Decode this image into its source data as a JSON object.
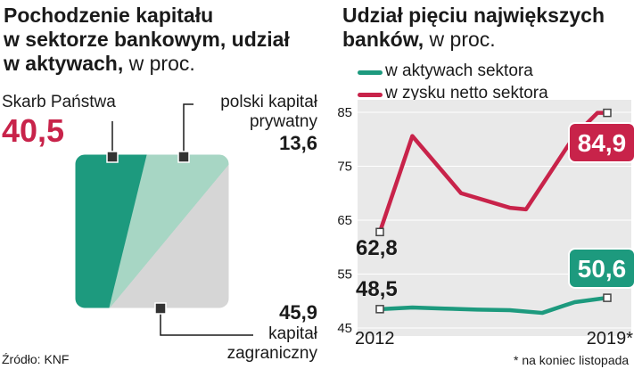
{
  "left_chart": {
    "title_bold": "Pochodzenie kapitału w sektorze bankowym, udział w aktywach,",
    "title_line1": "Pochodzenie kapitału",
    "title_line2": "w sektorze bankowym, udział",
    "title_line3": "w aktywach,",
    "title_unit": " w proc.",
    "segments": [
      {
        "label": "Skarb Państwa",
        "value_text": "40,5",
        "value": 40.5,
        "color": "#1d9a7e"
      },
      {
        "label_line1": "polski kapitał",
        "label_line2": "prywatny",
        "value_text": "13,6",
        "value": 13.6,
        "color": "#a7d6c4"
      },
      {
        "label_line1": "kapitał",
        "label_line2": "zagraniczny",
        "value_text": "45,9",
        "value": 45.9,
        "color": "#d6d6d6"
      }
    ]
  },
  "right_chart": {
    "title_line1": "Udział pięciu największych",
    "title_line2": "banków,",
    "title_unit": " w proc."
  },
  "chart_data": [
    {
      "type": "pie",
      "title": "Pochodzenie kapitału w sektorze bankowym, udział w aktywach, w proc.",
      "categories": [
        "Skarb Państwa",
        "polski kapitał prywatny",
        "kapitał zagraniczny"
      ],
      "values": [
        40.5,
        13.6,
        45.9
      ]
    },
    {
      "type": "line",
      "title": "Udział pięciu największych banków, w proc.",
      "x": [
        2012,
        2013,
        2014,
        2015,
        2016,
        2017,
        2018,
        2019
      ],
      "x_tick_labels": [
        "2012",
        "2019*"
      ],
      "ylim": [
        45,
        85
      ],
      "y_ticks": [
        45,
        55,
        65,
        75,
        85
      ],
      "y_tick_labels": [
        "45",
        "55",
        "65",
        "75",
        "85"
      ],
      "legend_position": "top",
      "series": [
        {
          "name": "w aktywach sektora",
          "color": "#1d9a7e",
          "values": [
            48.5,
            48.8,
            48.6,
            48.4,
            48.3,
            47.8,
            49.8,
            50.6
          ]
        },
        {
          "name": "w zysku netto sektora",
          "color": "#c8234a",
          "values": [
            62.8,
            80.6,
            70.0,
            67.3,
            67.0,
            80.7,
            84.9,
            84.9
          ],
          "x": [
            2012,
            2013,
            2014.5,
            2016,
            2016.5,
            2018,
            2018.7,
            2019
          ]
        }
      ],
      "annotations": {
        "start_red": "62,8",
        "end_red": "84,9",
        "start_green": "48,5",
        "end_green": "50,6"
      }
    }
  ],
  "source": "Źródło: KNF",
  "note": "* na koniec listopada"
}
